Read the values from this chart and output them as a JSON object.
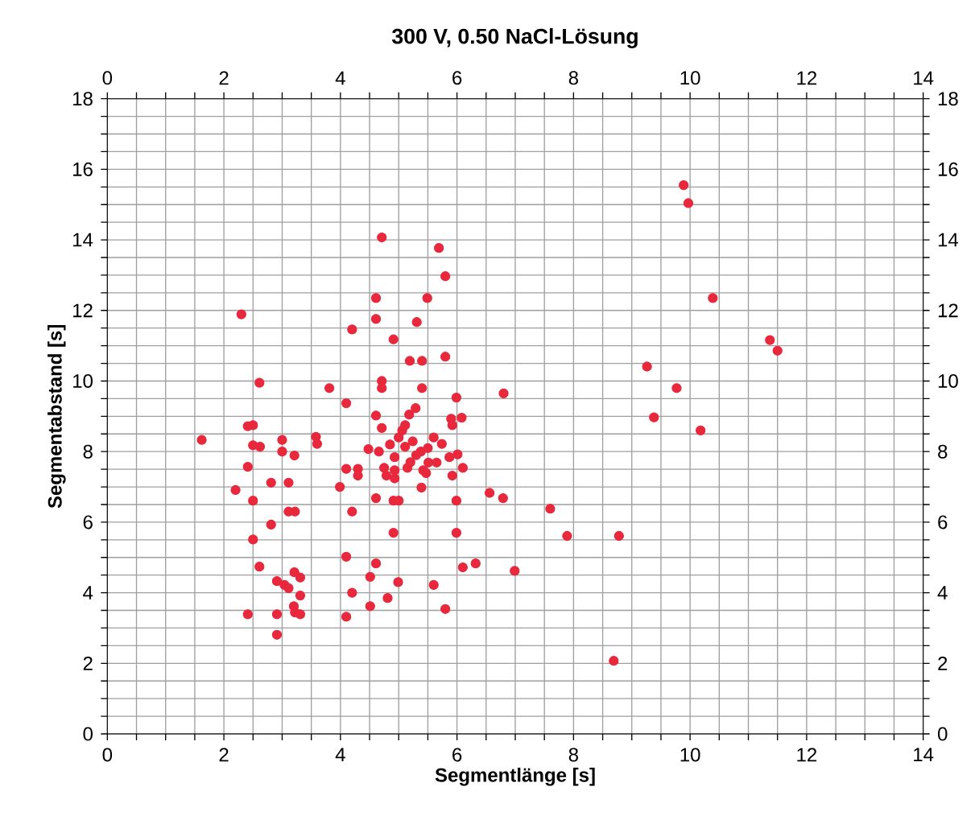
{
  "chart_data": {
    "type": "scatter",
    "title": "300 V, 0.50 NaCl-Lösung",
    "xlabel": "Segmentlänge [s]",
    "ylabel": "Segmentabstand [s]",
    "xlim": [
      0,
      14
    ],
    "ylim": [
      0,
      18
    ],
    "x2lim": [
      0,
      14
    ],
    "y2lim": [
      0,
      18
    ],
    "xticks": [
      0,
      {
        "value": 0.5,
        "label": null
      },
      {
        "value": 1,
        "label": null
      },
      {
        "value": 1.5,
        "label": null
      },
      2,
      {
        "value": 2.5,
        "label": null
      },
      {
        "value": 3,
        "label": null
      },
      {
        "value": 3.5,
        "label": null
      },
      4,
      {
        "value": 4.5,
        "label": null
      },
      {
        "value": 5,
        "label": null
      },
      {
        "value": 5.5,
        "label": null
      },
      6,
      {
        "value": 6.5,
        "label": null
      },
      {
        "value": 7,
        "label": null
      },
      {
        "value": 7.5,
        "label": null
      },
      8,
      {
        "value": 8.5,
        "label": null
      },
      {
        "value": 9,
        "label": null
      },
      {
        "value": 9.5,
        "label": null
      },
      10,
      {
        "value": 10.5,
        "label": null
      },
      {
        "value": 11,
        "label": null
      },
      {
        "value": 11.5,
        "label": null
      },
      12,
      {
        "value": 12.5,
        "label": null
      },
      {
        "value": 13,
        "label": null
      },
      {
        "value": 13.5,
        "label": null
      },
      14
    ],
    "x2ticks": [
      0,
      {
        "value": 0.5,
        "label": null
      },
      {
        "value": 1,
        "label": null
      },
      {
        "value": 1.5,
        "label": null
      },
      2,
      {
        "value": 2.5,
        "label": null
      },
      {
        "value": 3,
        "label": null
      },
      {
        "value": 3.5,
        "label": null
      },
      4,
      {
        "value": 4.5,
        "label": null
      },
      {
        "value": 5,
        "label": null
      },
      {
        "value": 5.5,
        "label": null
      },
      6,
      {
        "value": 6.5,
        "label": null
      },
      {
        "value": 7,
        "label": null
      },
      {
        "value": 7.5,
        "label": null
      },
      8,
      {
        "value": 8.5,
        "label": null
      },
      {
        "value": 9,
        "label": null
      },
      {
        "value": 9.5,
        "label": null
      },
      10,
      {
        "value": 10.5,
        "label": null
      },
      {
        "value": 11,
        "label": null
      },
      {
        "value": 11.5,
        "label": null
      },
      12,
      {
        "value": 12.5,
        "label": null
      },
      {
        "value": 13,
        "label": null
      },
      {
        "value": 13.5,
        "label": null
      },
      14
    ],
    "yticks": [
      0,
      {
        "value": 0.5,
        "label": null
      },
      {
        "value": 1,
        "label": null
      },
      {
        "value": 1.5,
        "label": null
      },
      2,
      {
        "value": 2.5,
        "label": null
      },
      {
        "value": 3,
        "label": null
      },
      {
        "value": 3.5,
        "label": null
      },
      4,
      {
        "value": 4.5,
        "label": null
      },
      {
        "value": 5,
        "label": null
      },
      {
        "value": 5.5,
        "label": null
      },
      6,
      {
        "value": 6.5,
        "label": null
      },
      {
        "value": 7,
        "label": null
      },
      {
        "value": 7.5,
        "label": null
      },
      8,
      {
        "value": 8.5,
        "label": null
      },
      {
        "value": 9,
        "label": null
      },
      {
        "value": 9.5,
        "label": null
      },
      10,
      {
        "value": 10.5,
        "label": null
      },
      {
        "value": 11,
        "label": null
      },
      {
        "value": 11.5,
        "label": null
      },
      12,
      {
        "value": 12.5,
        "label": null
      },
      {
        "value": 13,
        "label": null
      },
      {
        "value": 13.5,
        "label": null
      },
      14,
      {
        "value": 14.5,
        "label": null
      },
      {
        "value": 15,
        "label": null
      },
      {
        "value": 15.5,
        "label": null
      },
      16,
      {
        "value": 16.5,
        "label": null
      },
      {
        "value": 17,
        "label": null
      },
      {
        "value": 17.5,
        "label": null
      },
      18
    ],
    "y2ticks": [
      0,
      {
        "value": 0.5,
        "label": null
      },
      {
        "value": 1,
        "label": null
      },
      {
        "value": 1.5,
        "label": null
      },
      2,
      {
        "value": 2.5,
        "label": null
      },
      {
        "value": 3,
        "label": null
      },
      {
        "value": 3.5,
        "label": null
      },
      4,
      {
        "value": 4.5,
        "label": null
      },
      {
        "value": 5,
        "label": null
      },
      {
        "value": 5.5,
        "label": null
      },
      6,
      {
        "value": 6.5,
        "label": null
      },
      {
        "value": 7,
        "label": null
      },
      {
        "value": 7.5,
        "label": null
      },
      8,
      {
        "value": 8.5,
        "label": null
      },
      {
        "value": 9,
        "label": null
      },
      {
        "value": 9.5,
        "label": null
      },
      10,
      {
        "value": 10.5,
        "label": null
      },
      {
        "value": 11,
        "label": null
      },
      {
        "value": 11.5,
        "label": null
      },
      12,
      {
        "value": 12.5,
        "label": null
      },
      {
        "value": 13,
        "label": null
      },
      {
        "value": 13.5,
        "label": null
      },
      14,
      {
        "value": 14.5,
        "label": null
      },
      {
        "value": 15,
        "label": null
      },
      {
        "value": 15.5,
        "label": null
      },
      16,
      {
        "value": 16.5,
        "label": null
      },
      {
        "value": 17,
        "label": null
      },
      {
        "value": 17.5,
        "label": null
      },
      18
    ],
    "grid": true,
    "marker": "circle",
    "series": [
      {
        "color": "#e8283c",
        "x": [
          1.62,
          2.3,
          4.2,
          2.61,
          3.81,
          4.1,
          2.41,
          2.5,
          2.5,
          2.62,
          3.0,
          3.0,
          3.21,
          3.58,
          3.6,
          4.1,
          4.3,
          4.3,
          2.41,
          2.2,
          2.81,
          3.11,
          3.99,
          2.5,
          3.11,
          3.22,
          4.2,
          2.81,
          2.5,
          4.1,
          2.61,
          3.21,
          3.31,
          2.91,
          3.04,
          3.11,
          3.31,
          4.2,
          3.2,
          3.22,
          3.31,
          2.41,
          2.91,
          4.1,
          2.91,
          4.71,
          5.69,
          5.8,
          4.61,
          5.49,
          4.61,
          5.31,
          4.91,
          5.19,
          5.4,
          5.8,
          4.71,
          4.71,
          5.4,
          5.99,
          6.8,
          5.29,
          5.18,
          5.9,
          6.08,
          5.92,
          4.61,
          4.71,
          5.11,
          4.48,
          4.66,
          4.93,
          5.11,
          5.24,
          5.38,
          5.51,
          5.74,
          5.87,
          6.01,
          6.1,
          4.75,
          4.93,
          5.15,
          5.42,
          5.65,
          5.06,
          4.79,
          4.93,
          5.47,
          5.92,
          5.0,
          5.3,
          5.6,
          5.2,
          4.85,
          5.5,
          4.61,
          4.91,
          5.0,
          5.39,
          5.99,
          6.56,
          6.79,
          4.91,
          5.99,
          4.61,
          4.51,
          6.1,
          6.32,
          6.99,
          4.99,
          5.6,
          4.51,
          4.81,
          5.8,
          9.89,
          9.97,
          10.39,
          9.26,
          9.77,
          9.38,
          10.18,
          7.6,
          7.89,
          8.78,
          8.69,
          11.37,
          11.5
        ],
        "values": [
          8.33,
          11.89,
          11.46,
          9.95,
          9.8,
          9.37,
          8.72,
          8.75,
          8.18,
          8.14,
          8.33,
          8.0,
          7.89,
          8.42,
          8.22,
          7.51,
          7.51,
          7.32,
          7.57,
          6.91,
          7.12,
          7.12,
          7.0,
          6.61,
          6.3,
          6.3,
          6.3,
          5.93,
          5.51,
          5.02,
          4.74,
          4.58,
          4.43,
          4.33,
          4.22,
          4.13,
          3.92,
          4.0,
          3.62,
          3.44,
          3.39,
          3.39,
          3.39,
          3.32,
          2.81,
          14.07,
          13.77,
          12.97,
          12.35,
          12.35,
          11.76,
          11.67,
          11.18,
          10.57,
          10.57,
          10.69,
          10.0,
          9.8,
          9.8,
          9.53,
          9.65,
          9.23,
          9.05,
          8.93,
          8.96,
          8.75,
          9.02,
          8.67,
          8.75,
          8.07,
          8.0,
          7.84,
          8.14,
          8.29,
          8.0,
          7.69,
          8.22,
          7.84,
          7.92,
          7.54,
          7.54,
          7.47,
          7.54,
          7.47,
          7.69,
          8.6,
          7.32,
          7.24,
          7.39,
          7.32,
          8.4,
          7.9,
          8.4,
          7.7,
          8.2,
          8.1,
          6.68,
          6.61,
          6.61,
          6.98,
          6.61,
          6.83,
          6.68,
          5.7,
          5.7,
          4.83,
          4.45,
          4.72,
          4.83,
          4.62,
          4.3,
          4.22,
          3.62,
          3.85,
          3.54,
          15.55,
          15.04,
          12.35,
          10.41,
          9.8,
          8.97,
          8.6,
          6.38,
          5.61,
          5.61,
          2.07,
          11.16,
          10.86
        ]
      }
    ]
  }
}
